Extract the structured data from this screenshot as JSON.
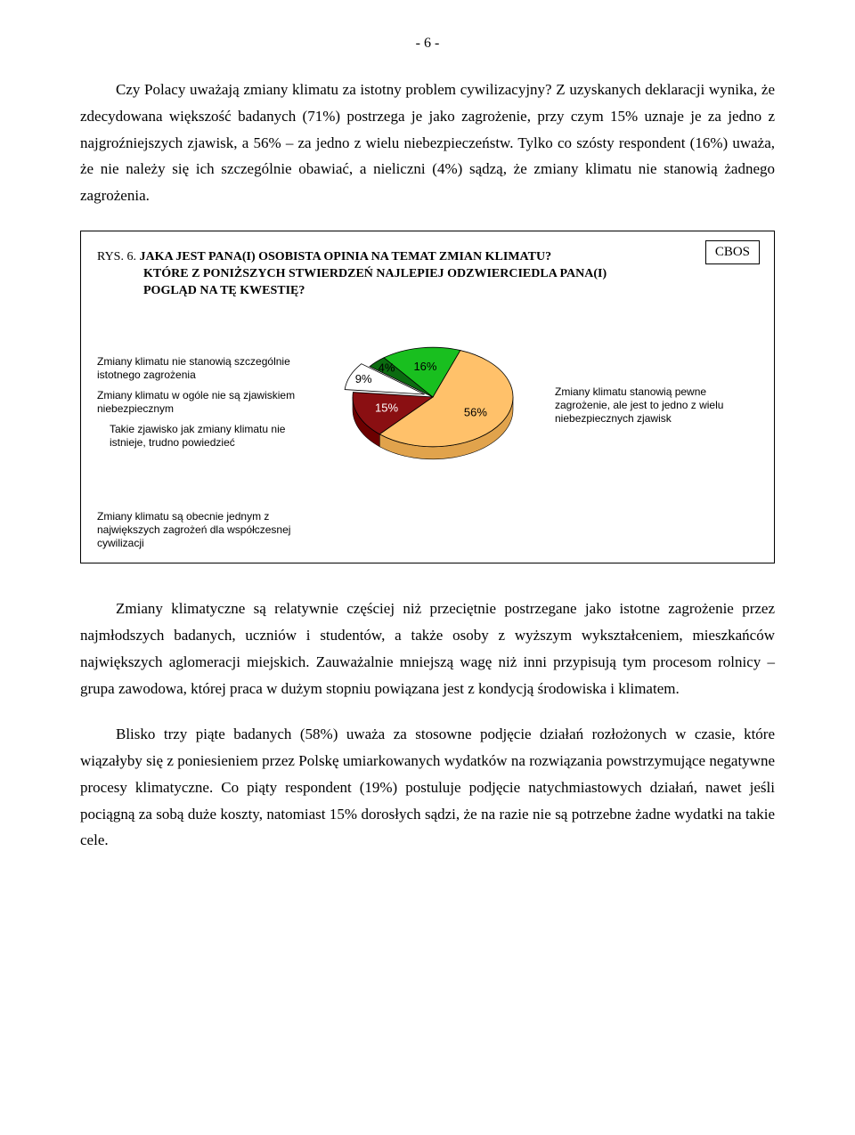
{
  "page_number": "- 6 -",
  "para1": "Czy Polacy uważają zmiany klimatu za istotny problem cywilizacyjny? Z uzyskanych deklaracji wynika, że zdecydowana większość badanych (71%) postrzega je jako zagrożenie, przy czym 15% uznaje je za jedno z najgroźniejszych zjawisk, a 56% – za jedno z wielu niebezpieczeństw. Tylko co szósty respondent (16%) uważa, że nie należy się ich szczególnie obawiać, a nieliczni (4%) sądzą, że zmiany klimatu nie stanowią żadnego zagrożenia.",
  "badge": "CBOS",
  "caption": {
    "prefix": "RYS. 6. ",
    "line1": "JAKA JEST PANA(I) OSOBISTA OPINIA NA TEMAT ZMIAN KLIMATU?",
    "line2": "KTÓRE Z PONIŻSZYCH STWIERDZEŃ NAJLEPIEJ ODZWIERCIEDLA PANA(I)",
    "line3": "POGLĄD NA TĘ KWESTIĘ?"
  },
  "pie": {
    "type": "pie",
    "background_color": "#ffffff",
    "slices": [
      {
        "label_key": "slice_56",
        "value": 56,
        "pct_text": "56%",
        "color": "#ffc16a",
        "text_color": "#000000"
      },
      {
        "label_key": "slice_15",
        "value": 15,
        "pct_text": "15%",
        "color": "#8a0f12",
        "text_color": "#ffffff"
      },
      {
        "label_key": "slice_9",
        "value": 9,
        "pct_text": "9%",
        "color": "#ffffff",
        "text_color": "#000000"
      },
      {
        "label_key": "slice_4",
        "value": 4,
        "pct_text": "4%",
        "color": "#0b6b10",
        "text_color": "#000000"
      },
      {
        "label_key": "slice_16",
        "value": 16,
        "pct_text": "16%",
        "color": "#19bf1f",
        "text_color": "#000000"
      }
    ],
    "stroke": "#000000",
    "radius": 90,
    "depth": 14,
    "start_angle_deg": -70
  },
  "labels": {
    "left_a": "Zmiany klimatu nie stanowią szczególnie istotnego zagrożenia",
    "left_b": "Zmiany klimatu w ogóle nie są zjawiskiem niebezpiecznym",
    "left_c": "Takie zjawisko jak zmiany klimatu nie istnieje, trudno powiedzieć",
    "right": "Zmiany klimatu stanowią pewne zagrożenie, ale jest to jedno z wielu niebezpiecznych zjawisk",
    "below": "Zmiany klimatu są obecnie jednym z największych zagrożeń dla współczesnej cywilizacji"
  },
  "para2": "Zmiany klimatyczne są relatywnie częściej niż przeciętnie postrzegane jako istotne zagrożenie przez najmłodszych badanych, uczniów i studentów, a także osoby z wyższym wykształceniem, mieszkańców największych aglomeracji miejskich. Zauważalnie mniejszą wagę niż inni przypisują tym procesom rolnicy – grupa zawodowa, której praca w dużym stopniu powiązana jest z kondycją środowiska i klimatem.",
  "para3": "Blisko trzy piąte badanych (58%) uważa za stosowne podjęcie działań rozłożonych w czasie, które wiązałyby się z poniesieniem przez Polskę umiarkowanych wydatków na rozwiązania powstrzymujące negatywne procesy klimatyczne. Co piąty respondent (19%) postuluje podjęcie natychmiastowych działań, nawet jeśli pociągną za sobą duże koszty, natomiast 15% dorosłych sądzi, że na razie nie są potrzebne żadne wydatki na takie cele."
}
